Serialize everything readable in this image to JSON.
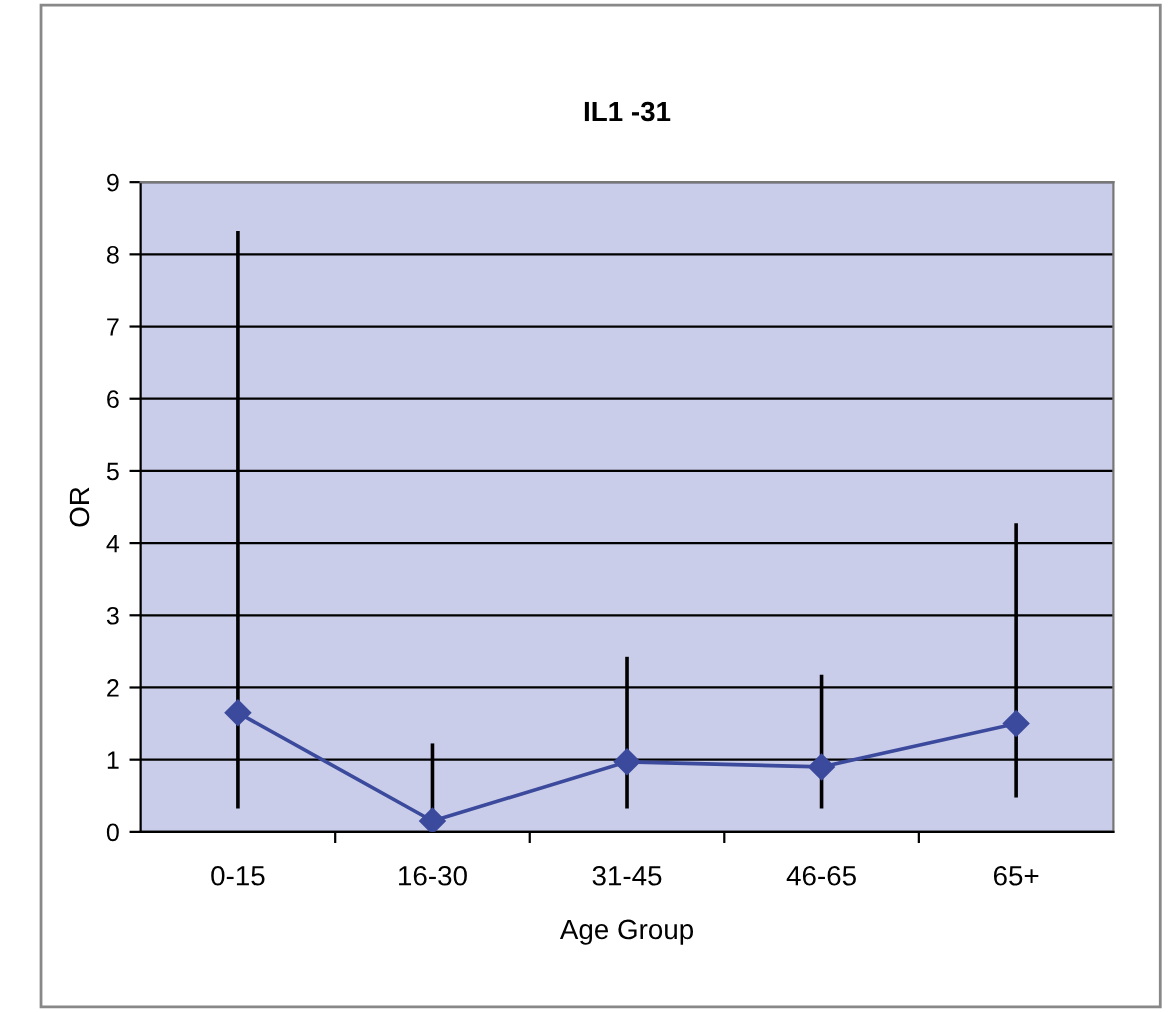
{
  "chart_data": {
    "type": "line",
    "title": "IL1 -31",
    "xlabel": "Age Group",
    "ylabel": "OR",
    "categories": [
      "0-15",
      "16-30",
      "31-45",
      "46-65",
      "65+"
    ],
    "series": [
      {
        "color": "#3b4a9c",
        "values": [
          1.65,
          0.15,
          0.97,
          0.9,
          1.5
        ],
        "errors": [
          [
            0.35,
            8.3
          ],
          [
            0.05,
            1.2
          ],
          [
            0.35,
            2.4
          ],
          [
            0.35,
            2.15
          ],
          [
            0.5,
            4.25
          ]
        ]
      }
    ],
    "ylim": [
      0,
      9
    ],
    "yticks": [
      0,
      1,
      2,
      3,
      4,
      5,
      6,
      7,
      8,
      9
    ],
    "grid": "y",
    "marker": "diamond",
    "line_style": "solid",
    "legend": false
  }
}
